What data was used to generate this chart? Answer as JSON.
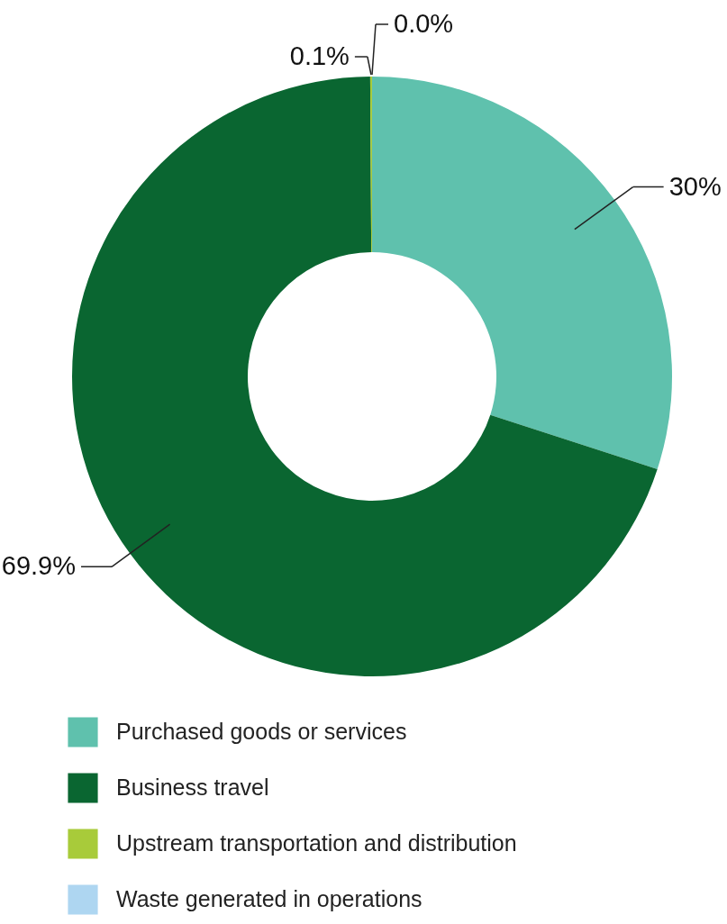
{
  "chart_data": {
    "type": "donut",
    "categories": [
      "Purchased goods or services",
      "Business travel",
      "Upstream transportation and distribution",
      "Waste generated in operations"
    ],
    "values": [
      30,
      69.9,
      0.1,
      0
    ],
    "colors": [
      "#5fc1ad",
      "#0a6631",
      "#a8cb3a",
      "#aed6f1"
    ],
    "value_labels": [
      "30%",
      "69.9%",
      "0.1%",
      "0.0%"
    ],
    "legend": "bottom"
  }
}
